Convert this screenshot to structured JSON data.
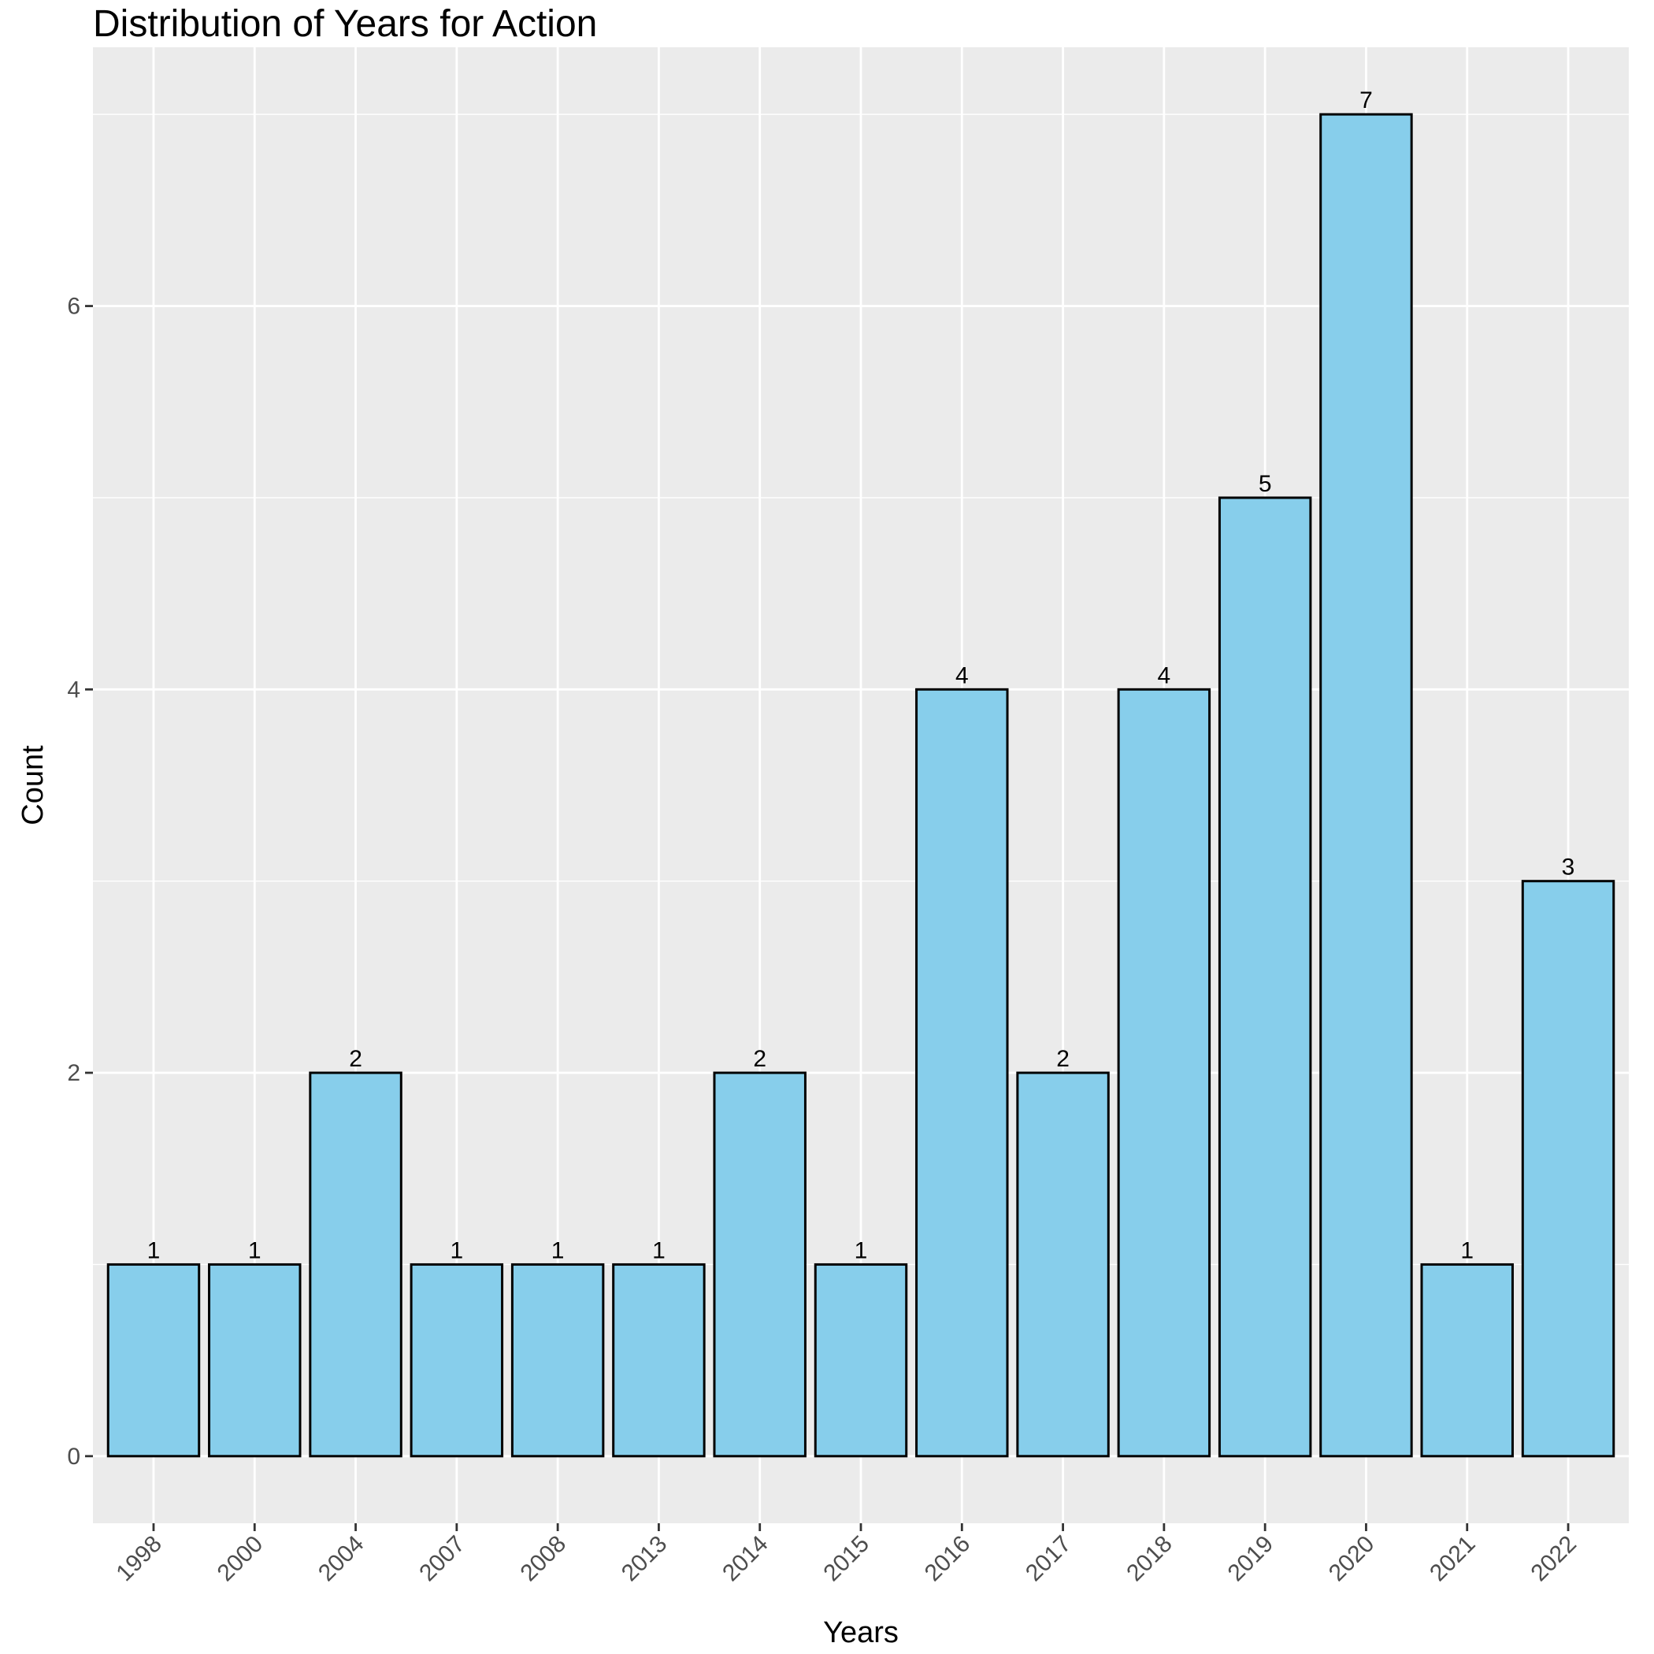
{
  "chart_data": {
    "type": "bar",
    "title": "Distribution of Years for Action",
    "xlabel": "Years",
    "ylabel": "Count",
    "categories": [
      "1998",
      "2000",
      "2004",
      "2007",
      "2008",
      "2013",
      "2014",
      "2015",
      "2016",
      "2017",
      "2018",
      "2019",
      "2020",
      "2021",
      "2022"
    ],
    "values": [
      1,
      1,
      2,
      1,
      1,
      1,
      2,
      1,
      4,
      2,
      4,
      5,
      7,
      1,
      3
    ],
    "ylim": [
      -0.35,
      7.35
    ],
    "yticks": [
      0,
      2,
      4,
      6
    ],
    "grid": true,
    "legend": "none",
    "colors": {
      "bar_fill": "#87CEEB",
      "bar_outline": "#000000",
      "panel_background": "#EBEBEB",
      "grid": "#FFFFFF"
    }
  }
}
